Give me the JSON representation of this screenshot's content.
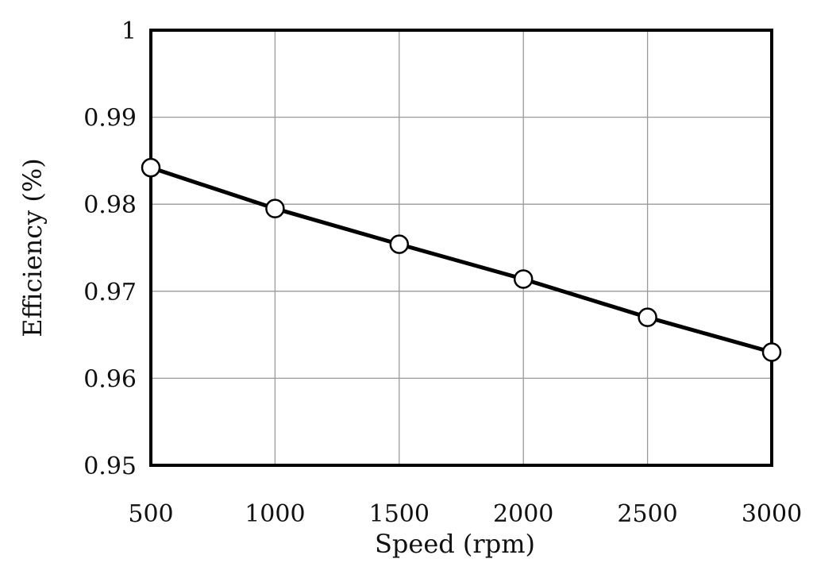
{
  "chart_data": {
    "type": "line",
    "title": "",
    "xlabel": "Speed (rpm)",
    "ylabel": "Efficiency (%)",
    "x": [
      500,
      1000,
      1500,
      2000,
      2500,
      3000
    ],
    "series": [
      {
        "values": [
          0.9842,
          0.9795,
          0.9754,
          0.9714,
          0.967,
          0.963
        ]
      }
    ],
    "xlim": [
      500,
      3000
    ],
    "ylim": [
      0.95,
      1
    ],
    "xticks": [
      500,
      1000,
      1500,
      2000,
      2500,
      3000
    ],
    "yticks": [
      0.95,
      0.96,
      0.97,
      0.98,
      0.99,
      1
    ],
    "xtick_labels": [
      "500",
      "1000",
      "1500",
      "2000",
      "2500",
      "3000"
    ],
    "ytick_labels": [
      "0.95",
      "0.96",
      "0.97",
      "0.98",
      "0.99",
      "1"
    ],
    "grid": true,
    "legend": "none",
    "marker": "open-circle",
    "line_color": "#000000",
    "grid_color": "#9a9a9a"
  }
}
